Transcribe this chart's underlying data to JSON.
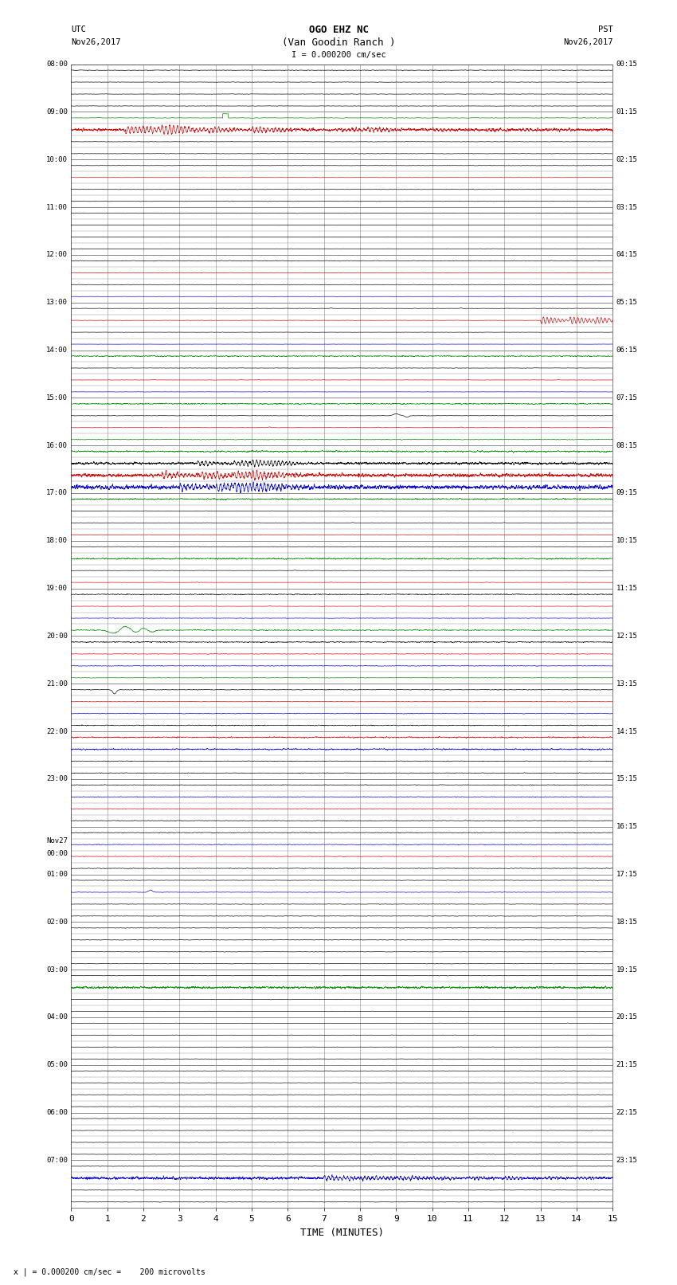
{
  "title_line1": "OGO EHZ NC",
  "title_line2": "(Van Goodin Ranch )",
  "title_line3": "I = 0.000200 cm/sec",
  "left_label_top": "UTC",
  "left_label_date": "Nov26,2017",
  "right_label_top": "PST",
  "right_label_date": "Nov26,2017",
  "xlabel": "TIME (MINUTES)",
  "footer": "x | = 0.000200 cm/sec =    200 microvolts",
  "bg_color": "#ffffff",
  "grid_color": "#888888",
  "xlim": [
    0,
    15
  ],
  "xticks": [
    0,
    1,
    2,
    3,
    4,
    5,
    6,
    7,
    8,
    9,
    10,
    11,
    12,
    13,
    14,
    15
  ],
  "utc_labels": [
    "08:00",
    "09:00",
    "10:00",
    "11:00",
    "12:00",
    "13:00",
    "14:00",
    "15:00",
    "16:00",
    "17:00",
    "18:00",
    "19:00",
    "20:00",
    "21:00",
    "22:00",
    "23:00",
    "Nov27\n00:00",
    "01:00",
    "02:00",
    "03:00",
    "04:00",
    "05:00",
    "06:00",
    "07:00"
  ],
  "pst_labels": [
    "00:15",
    "01:15",
    "02:15",
    "03:15",
    "04:15",
    "05:15",
    "06:15",
    "07:15",
    "08:15",
    "09:15",
    "10:15",
    "11:15",
    "12:15",
    "13:15",
    "14:15",
    "15:15",
    "16:15",
    "17:15",
    "18:15",
    "19:15",
    "20:15",
    "21:15",
    "22:15",
    "23:15"
  ]
}
